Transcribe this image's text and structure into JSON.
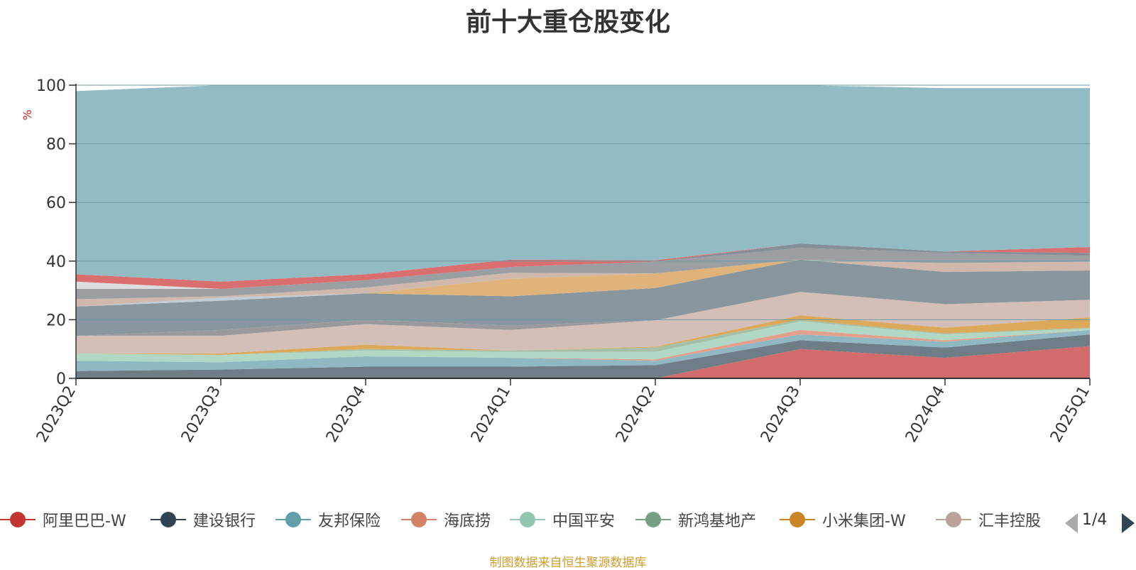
{
  "title": "前十大重仓股变化",
  "source_text": "制图数据来自恒生聚源数据库",
  "pager": {
    "text": "1/4"
  },
  "colors": {
    "background_area": "#92bbc3",
    "axis": "#333333",
    "unit": "#cc2222"
  },
  "chart_data": {
    "type": "area",
    "stacked": true,
    "title": "前十大重仓股变化",
    "ylabel": "%",
    "ylim": [
      0,
      100
    ],
    "yticks": [
      0,
      20,
      40,
      60,
      80,
      100
    ],
    "grid": true,
    "legend_position": "bottom",
    "categories": [
      "2023Q2",
      "2023Q3",
      "2023Q4",
      "2024Q1",
      "2024Q2",
      "2024Q3",
      "2024Q4",
      "2025Q1"
    ],
    "series": [
      {
        "name": "阿里巴巴-W",
        "color": "#d26b6b",
        "values": [
          0,
          0,
          0,
          0,
          0,
          10,
          7,
          11
        ]
      },
      {
        "name": "建设银行",
        "color": "#6e7d86",
        "values": [
          2.5,
          3,
          4,
          4,
          4.5,
          3,
          3.5,
          4
        ]
      },
      {
        "name": "友邦保险",
        "color": "#8fb8c3",
        "values": [
          3.5,
          2.5,
          3.5,
          3,
          1.5,
          2,
          2,
          1.5
        ]
      },
      {
        "name": "海底捞",
        "color": "#e3a08a",
        "values": [
          0,
          0,
          0,
          0,
          0.5,
          1.5,
          0.5,
          0
        ]
      },
      {
        "name": "中国平安",
        "color": "#b0d8c4",
        "values": [
          2.5,
          2.5,
          2,
          2,
          2.5,
          3,
          2,
          0.5
        ]
      },
      {
        "name": "新鸿基地产",
        "color": "#a5c0a9",
        "values": [
          0,
          0,
          0.5,
          0.5,
          1.5,
          0.5,
          0.3,
          0.3
        ]
      },
      {
        "name": "小米集团-W",
        "color": "#dca95a",
        "values": [
          0,
          0.5,
          1.5,
          0,
          0.3,
          1.5,
          2,
          3.5
        ]
      },
      {
        "name": "汇丰控股",
        "color": "#d4beb8",
        "values": [
          6,
          6,
          7,
          7,
          9,
          8,
          8,
          6
        ]
      },
      {
        "name": "",
        "color": "#9a9a9e",
        "values": [
          0,
          2,
          1.5,
          1.5,
          0,
          0,
          0,
          0
        ]
      },
      {
        "name": "",
        "color": "#8a969e",
        "values": [
          10,
          10,
          9,
          10,
          11,
          11,
          11,
          10
        ]
      },
      {
        "name": "",
        "color": "#c0cdd6",
        "values": [
          0,
          1,
          0,
          0,
          0,
          0,
          0,
          0
        ]
      },
      {
        "name": "",
        "color": "#c78d83",
        "values": [
          0,
          0,
          0,
          0,
          0,
          0,
          0,
          0
        ]
      },
      {
        "name": "",
        "color": "#e0b37a",
        "values": [
          0,
          0,
          0,
          6,
          5,
          0,
          0,
          0
        ]
      },
      {
        "name": "",
        "color": "#d0b8ad",
        "values": [
          2.5,
          0.5,
          2,
          2,
          0,
          0,
          3,
          3
        ]
      },
      {
        "name": "",
        "color": "#9b9fa3",
        "values": [
          3.5,
          2.5,
          2.5,
          2,
          4,
          4,
          3.5,
          2
        ]
      },
      {
        "name": "",
        "color": "#dcdde0",
        "values": [
          2.5,
          0,
          0,
          0,
          0,
          0,
          0,
          0
        ]
      },
      {
        "name": "",
        "color": "#868e98",
        "values": [
          0,
          0,
          0,
          0,
          0,
          1.5,
          0.5,
          1
        ]
      },
      {
        "name": "",
        "color": "#d96f6f",
        "values": [
          2.5,
          2.5,
          2,
          2.5,
          0.5,
          0,
          0,
          2
        ]
      },
      {
        "name": "",
        "color": "#92bbc3",
        "values": [
          62.5,
          67,
          64.5,
          62.5,
          60.7,
          54,
          55.7,
          54.2
        ]
      }
    ]
  }
}
